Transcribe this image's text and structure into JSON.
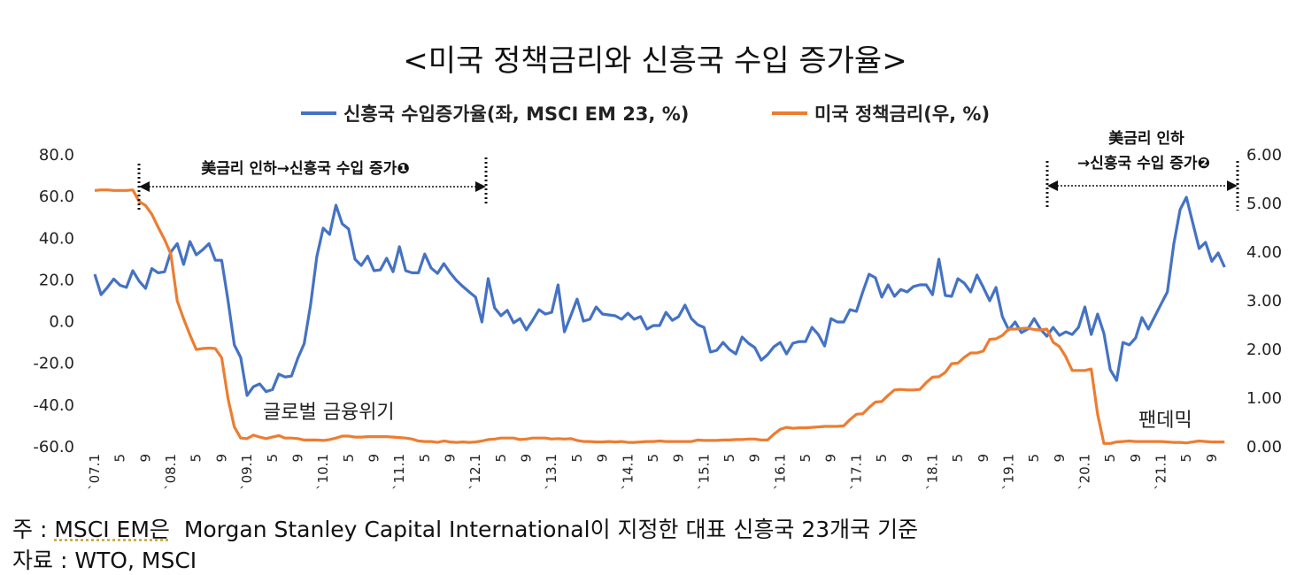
{
  "chart_data": {
    "type": "line",
    "title": "<미국 정책금리와 신흥국 수입 증가율>",
    "left_axis": {
      "ticks": [
        "80.0",
        "60.0",
        "40.0",
        "20.0",
        "0.0",
        "-20.0",
        "-40.0",
        "-60.0"
      ],
      "ylim": [
        -60,
        80
      ]
    },
    "right_axis": {
      "ticks": [
        "6.00",
        "5.00",
        "4.00",
        "3.00",
        "2.00",
        "1.00",
        "0.00"
      ],
      "ylim": [
        0,
        6
      ]
    },
    "x_tick_labels": [
      "`07.1",
      "5",
      "9",
      "`08.1",
      "5",
      "9",
      "`09.1",
      "5",
      "9",
      "`10.1",
      "5",
      "9",
      "`11.1",
      "5",
      "9",
      "`12.1",
      "5",
      "9",
      "`13.1",
      "5",
      "9",
      "`14.1",
      "5",
      "9",
      "`15.1",
      "5",
      "9",
      "`16.1",
      "5",
      "9",
      "`17.1",
      "5",
      "9",
      "`18.1",
      "5",
      "9",
      "`19.1",
      "5",
      "9",
      "`20.1",
      "5",
      "9",
      "`21.1",
      "5",
      "9"
    ],
    "grid": false,
    "legend_placement": "top",
    "series": [
      {
        "name": "신흥국 수입증가율(좌, MSCI EM 23, %)",
        "axis": "left",
        "color": "#4472C4",
        "values": [
          22.3,
          12.5,
          16,
          20,
          17,
          16,
          24,
          19,
          15.5,
          25,
          23,
          23.5,
          33,
          37,
          27,
          38,
          31.6,
          34,
          37,
          29,
          29,
          9.6,
          -11.6,
          -17.6,
          -35.8,
          -31.6,
          -30.3,
          -34,
          -33,
          -25.6,
          -27,
          -26.5,
          -18,
          -11,
          7.5,
          30.8,
          44.4,
          41.4,
          55.4,
          46.5,
          44,
          29.5,
          26.5,
          31,
          24,
          24.4,
          30,
          23.5,
          35.5,
          24,
          23,
          23,
          32,
          25.3,
          22.7,
          27.4,
          23,
          19.3,
          16.4,
          13.8,
          11.3,
          -0.6,
          20.2,
          6.2,
          2.4,
          5,
          -1,
          1,
          -4.4,
          0.2,
          5.3,
          3.2,
          4,
          17.2,
          -5.3,
          2.4,
          10.4,
          -0.2,
          0.7,
          6.6,
          3.2,
          2.8,
          2.4,
          0.7,
          3.6,
          0.7,
          2,
          -4,
          -2.3,
          -2.3,
          4,
          0.2,
          2,
          7.5,
          1,
          -1.9,
          -3.2,
          -15,
          -14.2,
          -10.4,
          -13.8,
          -15.9,
          -7.8,
          -10.8,
          -12.9,
          -18.9,
          -16.3,
          -12.5,
          -10.4,
          -15.9,
          -10.8,
          -10,
          -10,
          -3.2,
          -6.6,
          -12.1,
          1,
          -0.6,
          -0.6,
          5.3,
          4.5,
          13.8,
          22.3,
          20.6,
          11.3,
          17.2,
          11.7,
          15,
          13.8,
          16.4,
          17.2,
          17.2,
          12.5,
          29.5,
          12.1,
          11.7,
          20.2,
          18,
          13.8,
          21.9,
          16,
          9.6,
          16,
          2,
          -4.4,
          -0.6,
          -5.7,
          -4,
          1,
          -4,
          -7.4,
          -3.2,
          -7,
          -5.3,
          -6.6,
          -3.2,
          6.6,
          -6.6,
          3.2,
          -6.1,
          -23.5,
          -28.6,
          -10.4,
          -11.6,
          -8.2,
          1.5,
          -4,
          2,
          8,
          13.8,
          36.7,
          53.3,
          59.2,
          46.9,
          34.6,
          37.6,
          28.5,
          32.5,
          25.7
        ]
      },
      {
        "name": "미국 정책금리(우, %)",
        "axis": "right",
        "color": "#ED7D31",
        "values": [
          5.25,
          5.26,
          5.26,
          5.25,
          5.25,
          5.25,
          5.26,
          5.02,
          4.94,
          4.76,
          4.49,
          4.24,
          3.94,
          2.98,
          2.61,
          2.28,
          1.98,
          2.0,
          2.01,
          2.0,
          1.81,
          0.97,
          0.39,
          0.16,
          0.15,
          0.22,
          0.18,
          0.15,
          0.18,
          0.21,
          0.16,
          0.16,
          0.15,
          0.12,
          0.12,
          0.12,
          0.11,
          0.13,
          0.16,
          0.2,
          0.2,
          0.18,
          0.18,
          0.19,
          0.19,
          0.19,
          0.19,
          0.18,
          0.17,
          0.16,
          0.14,
          0.1,
          0.09,
          0.09,
          0.07,
          0.1,
          0.08,
          0.07,
          0.08,
          0.07,
          0.08,
          0.1,
          0.13,
          0.14,
          0.16,
          0.16,
          0.16,
          0.13,
          0.14,
          0.16,
          0.16,
          0.16,
          0.14,
          0.15,
          0.14,
          0.15,
          0.11,
          0.09,
          0.09,
          0.08,
          0.08,
          0.09,
          0.08,
          0.09,
          0.07,
          0.07,
          0.08,
          0.09,
          0.09,
          0.1,
          0.09,
          0.09,
          0.09,
          0.09,
          0.09,
          0.12,
          0.11,
          0.11,
          0.11,
          0.12,
          0.12,
          0.13,
          0.13,
          0.14,
          0.14,
          0.12,
          0.12,
          0.24,
          0.34,
          0.38,
          0.36,
          0.37,
          0.37,
          0.38,
          0.39,
          0.4,
          0.4,
          0.4,
          0.41,
          0.54,
          0.65,
          0.66,
          0.79,
          0.9,
          0.91,
          1.04,
          1.15,
          1.16,
          1.15,
          1.15,
          1.16,
          1.3,
          1.41,
          1.42,
          1.51,
          1.69,
          1.7,
          1.82,
          1.91,
          1.91,
          1.95,
          2.19,
          2.2,
          2.27,
          2.4,
          2.4,
          2.41,
          2.42,
          2.39,
          2.38,
          2.4,
          2.13,
          2.04,
          1.83,
          1.55,
          1.55,
          1.55,
          1.58,
          0.65,
          0.05,
          0.05,
          0.08,
          0.09,
          0.1,
          0.09,
          0.09,
          0.09,
          0.09,
          0.09,
          0.08,
          0.07,
          0.07,
          0.06,
          0.08,
          0.1,
          0.09,
          0.08,
          0.08,
          0.08
        ]
      }
    ],
    "annotations": {
      "period1": "美금리 인하→신흥국 수입 증가❶",
      "period2_line1": "美금리 인하",
      "period2_line2": "→신흥국 수입 증가❷",
      "gfc": "글로벌 금융위기",
      "pandemic": "팬데믹"
    }
  },
  "footnotes": {
    "note_prefix": "주 : ",
    "note_underlined": "MSCI EM은",
    "note_rest": "  Morgan Stanley Capital International이 지정한 대표 신흥국 23개국 기준",
    "source": "자료 : WTO, MSCI"
  }
}
